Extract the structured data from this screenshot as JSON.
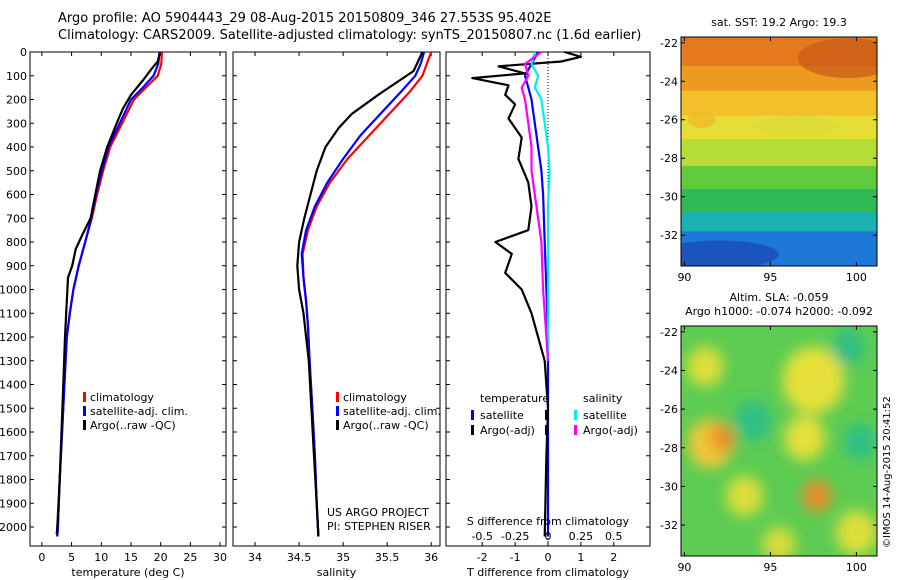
{
  "header": {
    "title_line1": "Argo profile: AO 5904443_29 08-Aug-2015 20150809_346 27.553S 95.402E",
    "title_line2": "Climatology: CARS2009. Satellite-adjusted climatology: synTS_20150807.nc (1.6d earlier)"
  },
  "credit": "©IMOS 14-Aug-2015 20:41:52",
  "project_note": {
    "line1": "US ARGO PROJECT",
    "line2": "PI: STEPHEN RISER"
  },
  "colors": {
    "climatology": "#ff0000",
    "satellite": "#0000ff",
    "argo": "#000000",
    "sat_sal": "#00eeee",
    "argo_sal": "#ff00ff"
  },
  "chart_data": [
    {
      "type": "line",
      "id": "temperature",
      "xlabel": "temperature (deg C)",
      "xlim": [
        -2,
        31
      ],
      "ylim": [
        2080,
        0
      ],
      "xticks": [
        0,
        5,
        10,
        15,
        20,
        25,
        30
      ],
      "yticks": [
        0,
        100,
        200,
        300,
        400,
        500,
        600,
        700,
        800,
        900,
        1000,
        1100,
        1200,
        1300,
        1400,
        1500,
        1600,
        1700,
        1800,
        1900,
        2000
      ],
      "legend": [
        "climatology",
        "satellite-adj. clim.",
        "Argo(..raw -QC)"
      ],
      "series": [
        {
          "name": "climatology",
          "color": "#ff0000",
          "points": [
            [
              20.2,
              0
            ],
            [
              20.1,
              50
            ],
            [
              19.5,
              100
            ],
            [
              17.5,
              150
            ],
            [
              15.5,
              200
            ],
            [
              13.5,
              300
            ],
            [
              11.5,
              400
            ],
            [
              10.3,
              500
            ],
            [
              9.3,
              600
            ],
            [
              8.4,
              700
            ],
            [
              7.3,
              800
            ],
            [
              6.2,
              900
            ],
            [
              5.3,
              1000
            ],
            [
              4.7,
              1100
            ],
            [
              4.2,
              1200
            ],
            [
              3.8,
              1400
            ],
            [
              3.4,
              1600
            ],
            [
              3.0,
              1800
            ],
            [
              2.7,
              2000
            ],
            [
              2.6,
              2040
            ]
          ]
        },
        {
          "name": "satellite-adj. clim.",
          "color": "#0000ff",
          "points": [
            [
              19.8,
              0
            ],
            [
              19.6,
              50
            ],
            [
              18.8,
              100
            ],
            [
              17.0,
              150
            ],
            [
              15.0,
              200
            ],
            [
              13.1,
              300
            ],
            [
              11.2,
              400
            ],
            [
              10.1,
              500
            ],
            [
              9.1,
              600
            ],
            [
              8.3,
              700
            ],
            [
              7.3,
              800
            ],
            [
              6.2,
              900
            ],
            [
              5.3,
              1000
            ],
            [
              4.7,
              1100
            ],
            [
              4.2,
              1200
            ],
            [
              3.8,
              1400
            ],
            [
              3.4,
              1600
            ],
            [
              3.0,
              1800
            ],
            [
              2.7,
              2000
            ],
            [
              2.6,
              2040
            ]
          ]
        },
        {
          "name": "Argo(..raw -QC)",
          "color": "#000000",
          "points": [
            [
              19.9,
              0
            ],
            [
              19.5,
              40
            ],
            [
              18.5,
              70
            ],
            [
              17.0,
              120
            ],
            [
              15.0,
              180
            ],
            [
              13.6,
              240
            ],
            [
              12.6,
              300
            ],
            [
              11.0,
              400
            ],
            [
              9.8,
              500
            ],
            [
              9.0,
              600
            ],
            [
              8.2,
              700
            ],
            [
              6.8,
              770
            ],
            [
              5.7,
              830
            ],
            [
              5.1,
              900
            ],
            [
              4.4,
              950
            ],
            [
              4.1,
              1100
            ],
            [
              3.9,
              1200
            ],
            [
              3.6,
              1400
            ],
            [
              3.3,
              1600
            ],
            [
              3.0,
              1800
            ],
            [
              2.6,
              2000
            ],
            [
              2.5,
              2030
            ]
          ]
        }
      ]
    },
    {
      "type": "line",
      "id": "salinity",
      "xlabel": "salinity",
      "xlim": [
        33.75,
        36.1
      ],
      "ylim": [
        2080,
        0
      ],
      "xticks": [
        34,
        34.5,
        35,
        35.5,
        36
      ],
      "legend": [
        "climatology",
        "satellite-adj. clim.",
        "Argo(..raw -QC)"
      ],
      "series": [
        {
          "name": "climatology",
          "color": "#ff0000",
          "points": [
            [
              36.0,
              0
            ],
            [
              35.95,
              50
            ],
            [
              35.9,
              100
            ],
            [
              35.75,
              170
            ],
            [
              35.55,
              250
            ],
            [
              35.3,
              350
            ],
            [
              35.05,
              450
            ],
            [
              34.85,
              550
            ],
            [
              34.7,
              650
            ],
            [
              34.6,
              750
            ],
            [
              34.54,
              850
            ],
            [
              34.55,
              950
            ],
            [
              34.58,
              1050
            ],
            [
              34.6,
              1150
            ],
            [
              34.62,
              1300
            ],
            [
              34.65,
              1500
            ],
            [
              34.68,
              1700
            ],
            [
              34.7,
              1900
            ],
            [
              34.72,
              2040
            ]
          ]
        },
        {
          "name": "satellite-adj. clim.",
          "color": "#0000ff",
          "points": [
            [
              35.92,
              0
            ],
            [
              35.88,
              50
            ],
            [
              35.82,
              100
            ],
            [
              35.65,
              170
            ],
            [
              35.45,
              250
            ],
            [
              35.2,
              350
            ],
            [
              35.0,
              450
            ],
            [
              34.82,
              550
            ],
            [
              34.68,
              650
            ],
            [
              34.58,
              750
            ],
            [
              34.53,
              850
            ],
            [
              34.55,
              950
            ],
            [
              34.58,
              1050
            ],
            [
              34.6,
              1150
            ],
            [
              34.62,
              1300
            ],
            [
              34.65,
              1500
            ],
            [
              34.68,
              1700
            ],
            [
              34.7,
              1900
            ],
            [
              34.72,
              2040
            ]
          ]
        },
        {
          "name": "Argo(..raw -QC)",
          "color": "#000000",
          "points": [
            [
              35.9,
              0
            ],
            [
              35.85,
              40
            ],
            [
              35.8,
              80
            ],
            [
              35.6,
              130
            ],
            [
              35.4,
              180
            ],
            [
              35.1,
              260
            ],
            [
              34.95,
              320
            ],
            [
              34.8,
              400
            ],
            [
              34.7,
              500
            ],
            [
              34.63,
              600
            ],
            [
              34.56,
              700
            ],
            [
              34.5,
              800
            ],
            [
              34.48,
              900
            ],
            [
              34.5,
              1000
            ],
            [
              34.55,
              1100
            ],
            [
              34.58,
              1200
            ],
            [
              34.61,
              1300
            ],
            [
              34.64,
              1500
            ],
            [
              34.67,
              1700
            ],
            [
              34.7,
              1900
            ],
            [
              34.72,
              2040
            ]
          ]
        }
      ]
    },
    {
      "type": "line",
      "id": "difference",
      "xlabel": "T difference from climatology",
      "top_label": "S difference from climatology",
      "xlim": [
        -3.1,
        3.1
      ],
      "ylim": [
        2080,
        0
      ],
      "xticks": [
        -2,
        -1,
        0,
        1,
        2
      ],
      "s_tick_labels": [
        "-0.5",
        "-0.25",
        "0",
        "0.25",
        "0.5"
      ],
      "s_tick_positions": [
        -2,
        -1,
        0,
        1,
        2
      ],
      "legend_temperature": {
        "heading": "temperature",
        "items": [
          "satellite",
          "Argo(-adj)"
        ]
      },
      "legend_salinity": {
        "heading": "salinity",
        "items": [
          "satellite",
          "Argo(-adj)"
        ]
      },
      "series": [
        {
          "name": "temperature satellite",
          "color": "#0000ff",
          "points": [
            [
              -0.3,
              0
            ],
            [
              -0.5,
              50
            ],
            [
              -0.7,
              100
            ],
            [
              -0.6,
              150
            ],
            [
              -0.5,
              200
            ],
            [
              -0.4,
              300
            ],
            [
              -0.3,
              400
            ],
            [
              -0.2,
              500
            ],
            [
              -0.15,
              600
            ],
            [
              -0.1,
              800
            ],
            [
              -0.05,
              1000
            ],
            [
              0,
              1200
            ],
            [
              0,
              1600
            ],
            [
              0,
              2040
            ]
          ]
        },
        {
          "name": "temperature Argo(-adj)",
          "color": "#000000",
          "points": [
            [
              0.5,
              0
            ],
            [
              1.0,
              20
            ],
            [
              0.4,
              40
            ],
            [
              -1.5,
              60
            ],
            [
              -0.7,
              90
            ],
            [
              -2.3,
              110
            ],
            [
              -1.2,
              140
            ],
            [
              -1.3,
              180
            ],
            [
              -1.0,
              220
            ],
            [
              -1.2,
              280
            ],
            [
              -0.8,
              360
            ],
            [
              -0.9,
              450
            ],
            [
              -0.6,
              550
            ],
            [
              -0.5,
              650
            ],
            [
              -0.6,
              750
            ],
            [
              -1.6,
              800
            ],
            [
              -1.1,
              850
            ],
            [
              -1.3,
              930
            ],
            [
              -0.8,
              1000
            ],
            [
              -0.5,
              1100
            ],
            [
              -0.3,
              1200
            ],
            [
              -0.1,
              1300
            ],
            [
              0,
              1500
            ],
            [
              -0.05,
              1700
            ],
            [
              -0.1,
              2040
            ]
          ]
        },
        {
          "name": "salinity satellite",
          "color": "#00eeee",
          "points": [
            [
              -0.4,
              0
            ],
            [
              -0.5,
              50
            ],
            [
              -0.3,
              100
            ],
            [
              -0.4,
              150
            ],
            [
              -0.2,
              200
            ],
            [
              -0.1,
              300
            ],
            [
              0,
              400
            ],
            [
              0.05,
              500
            ],
            [
              0,
              650
            ],
            [
              0,
              800
            ],
            [
              0,
              1000
            ],
            [
              0,
              1300
            ]
          ]
        },
        {
          "name": "salinity Argo(-adj)",
          "color": "#ff00ff",
          "points": [
            [
              -0.2,
              0
            ],
            [
              -0.7,
              50
            ],
            [
              -0.6,
              100
            ],
            [
              -0.8,
              150
            ],
            [
              -0.7,
              200
            ],
            [
              -0.6,
              300
            ],
            [
              -0.5,
              400
            ],
            [
              -0.5,
              500
            ],
            [
              -0.4,
              600
            ],
            [
              -0.3,
              700
            ],
            [
              -0.2,
              800
            ],
            [
              -0.15,
              1000
            ],
            [
              -0.05,
              1200
            ],
            [
              0,
              1300
            ]
          ]
        }
      ]
    },
    {
      "type": "heatmap",
      "id": "sst_map",
      "title": "sat. SST: 19.2 Argo: 19.3",
      "xlim": [
        89.8,
        101.2
      ],
      "ylim": [
        -33.6,
        -21.7
      ],
      "xticks": [
        90,
        95,
        100
      ],
      "yticks": [
        -22,
        -24,
        -26,
        -28,
        -30,
        -32
      ],
      "bands": [
        {
          "from": -21.7,
          "to": -23.2,
          "color": "#e57a1c"
        },
        {
          "from": -23.2,
          "to": -24.5,
          "color": "#ee9a20"
        },
        {
          "from": -24.5,
          "to": -25.8,
          "color": "#f2c12a"
        },
        {
          "from": -25.8,
          "to": -27.0,
          "color": "#e6de34"
        },
        {
          "from": -27.0,
          "to": -28.4,
          "color": "#b6dc38"
        },
        {
          "from": -28.4,
          "to": -29.6,
          "color": "#5fca3c"
        },
        {
          "from": -29.6,
          "to": -30.8,
          "color": "#2fba55"
        },
        {
          "from": -30.8,
          "to": -31.8,
          "color": "#1ab2b0"
        },
        {
          "from": -31.8,
          "to": -33.6,
          "color": "#1e78d6"
        }
      ]
    },
    {
      "type": "heatmap",
      "id": "sla_map",
      "title_line1": "Altim. SLA: -0.059",
      "title_line2": "Argo h1000: -0.074 h2000: -0.092",
      "xlim": [
        89.8,
        101.2
      ],
      "ylim": [
        -33.6,
        -21.7
      ],
      "xticks": [
        90,
        95,
        100
      ],
      "yticks": [
        -22,
        -24,
        -26,
        -28,
        -30,
        -32
      ],
      "base_color": "#5ccc52",
      "blobs": [
        {
          "lon": 91.2,
          "lat": -23.8,
          "r": 0.9,
          "color": "#dede3a"
        },
        {
          "lon": 91.5,
          "lat": -27.8,
          "r": 1.1,
          "color": "#f0c83a"
        },
        {
          "lon": 92.2,
          "lat": -27.5,
          "r": 0.6,
          "color": "#f08a2a"
        },
        {
          "lon": 94.0,
          "lat": -26.6,
          "r": 0.9,
          "color": "#2fbf86"
        },
        {
          "lon": 93.5,
          "lat": -30.5,
          "r": 0.9,
          "color": "#dede3a"
        },
        {
          "lon": 97.5,
          "lat": -24.5,
          "r": 1.5,
          "color": "#e6e03a"
        },
        {
          "lon": 97.0,
          "lat": -27.5,
          "r": 1.0,
          "color": "#e6e03a"
        },
        {
          "lon": 97.7,
          "lat": -30.5,
          "r": 0.7,
          "color": "#f08a2a"
        },
        {
          "lon": 99.5,
          "lat": -22.8,
          "r": 0.8,
          "color": "#2fbf86"
        },
        {
          "lon": 100.2,
          "lat": -27.7,
          "r": 0.8,
          "color": "#2fbf86"
        },
        {
          "lon": 100.0,
          "lat": -32.4,
          "r": 1.0,
          "color": "#dede3a"
        },
        {
          "lon": 95.5,
          "lat": -33.0,
          "r": 0.8,
          "color": "#d8dc3a"
        }
      ]
    }
  ]
}
